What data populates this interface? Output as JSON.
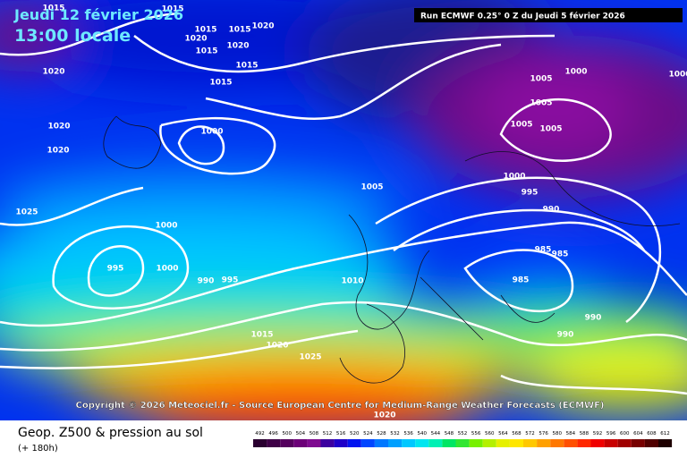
{
  "header": {
    "date": "Jeudi 12 février 2026",
    "time": "13:00 locale",
    "run": "Run ECMWF 0.25° 0 Z du Jeudi 5 février 2026"
  },
  "copyright": "Copyright © 2026 Meteociel.fr - Source European Centre for Medium-Range Weather Forecasts (ECMWF)",
  "footer": {
    "title": "Geop. Z500 & pression au sol",
    "lead": "(+ 180h)"
  },
  "isobar_labels": [
    "1015",
    "1015",
    "1020",
    "1020",
    "1015",
    "1020",
    "1015",
    "1015",
    "1015",
    "1015",
    "1020",
    "1020",
    "1020",
    "1000",
    "1025",
    "1000",
    "995",
    "1000",
    "990",
    "995",
    "1010",
    "1005",
    "1015",
    "1020",
    "1025",
    "1020",
    "1000",
    "1000",
    "1005",
    "1005",
    "1005",
    "1005",
    "1000",
    "995",
    "990",
    "985",
    "985",
    "985",
    "990",
    "990"
  ],
  "legend": {
    "values": [
      492,
      496,
      500,
      504,
      508,
      512,
      516,
      520,
      524,
      528,
      532,
      536,
      540,
      544,
      548,
      552,
      556,
      560,
      564,
      568,
      572,
      576,
      580,
      584,
      588,
      592,
      596,
      600,
      604,
      608,
      612
    ],
    "colors": [
      "#2a0030",
      "#3e0046",
      "#55005e",
      "#6c0078",
      "#7f0a90",
      "#3c00a0",
      "#1e00c8",
      "#0014f0",
      "#0046ff",
      "#0078ff",
      "#00a0ff",
      "#00c8ff",
      "#00e6f0",
      "#00f0b4",
      "#00e664",
      "#32e632",
      "#78f000",
      "#b4f000",
      "#e6f000",
      "#ffe600",
      "#ffc800",
      "#ffa000",
      "#ff7800",
      "#ff5000",
      "#ff2800",
      "#f00000",
      "#c80000",
      "#a00000",
      "#780000",
      "#500000",
      "#1e0000"
    ]
  }
}
